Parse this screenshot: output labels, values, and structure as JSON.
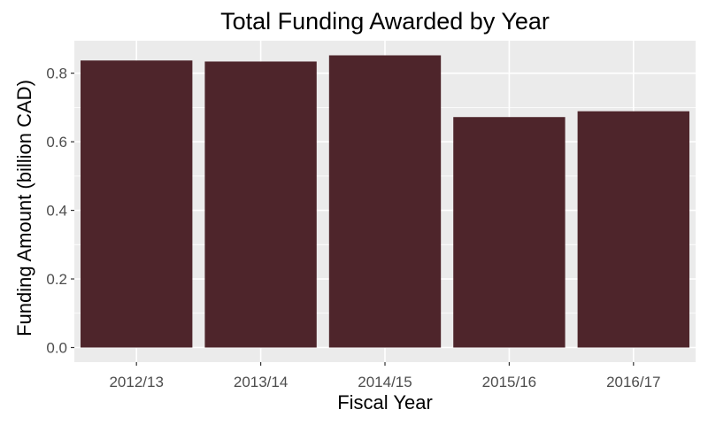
{
  "chart_data": {
    "type": "bar",
    "title": "Total Funding Awarded by Year",
    "xlabel": "Fiscal Year",
    "ylabel": "Funding Amount (billion CAD)",
    "categories": [
      "2012/13",
      "2013/14",
      "2014/15",
      "2015/16",
      "2016/17"
    ],
    "values": [
      0.837,
      0.834,
      0.852,
      0.672,
      0.689
    ],
    "ylim": [
      -0.0426,
      0.8946
    ],
    "yticks": [
      0.0,
      0.2,
      0.4,
      0.6,
      0.8
    ],
    "ytick_labels": [
      "0.0",
      "0.2",
      "0.4",
      "0.6",
      "0.8"
    ],
    "grid": true,
    "colors": {
      "bar": "#4e252b",
      "panel": "#ebebeb",
      "grid": "#ffffff"
    }
  }
}
